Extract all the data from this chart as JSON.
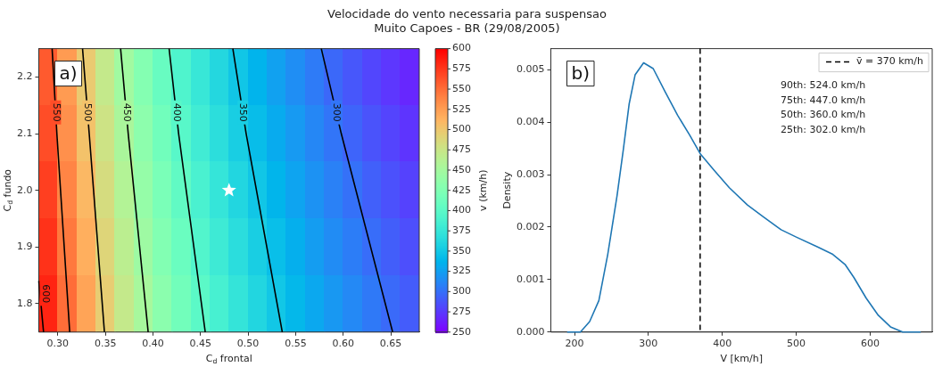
{
  "chart_data": [
    {
      "type": "heatmap",
      "title": "Velocidade do vento necessaria para suspensao",
      "subtitle": "Muito Capoes - BR (29/08/2005)",
      "xlabel": "C$_{d}$ frontal",
      "ylabel": "C$_{d}$ fundo",
      "clabel": "v (km/h)",
      "xlim": [
        0.28,
        0.68
      ],
      "xticks": [
        {
          "value": 0.3,
          "label": "0.30"
        },
        {
          "value": 0.35,
          "label": "0.35"
        },
        {
          "value": 0.4,
          "label": "0.40"
        },
        {
          "value": 0.45,
          "label": "0.45"
        },
        {
          "value": 0.5,
          "label": "0.50"
        },
        {
          "value": 0.55,
          "label": "0.55"
        },
        {
          "value": 0.6,
          "label": "0.60"
        },
        {
          "value": 0.65,
          "label": "0.65"
        }
      ],
      "ylim": [
        1.75,
        2.25
      ],
      "yticks": [
        1.8,
        1.9,
        {
          "value": 2,
          "label": "2.0"
        },
        2.1,
        2.2
      ],
      "cells": [
        [
          560,
          527,
          498,
          472,
          448,
          428,
          409,
          392,
          376,
          362,
          349,
          337,
          326,
          316,
          306,
          297,
          289,
          281,
          274,
          267
        ],
        [
          566,
          533,
          504,
          478,
          454,
          434,
          415,
          398,
          382,
          368,
          355,
          343,
          332,
          322,
          312,
          303,
          295,
          287,
          280,
          273
        ],
        [
          572,
          539,
          510,
          484,
          460,
          440,
          421,
          404,
          388,
          374,
          361,
          349,
          338,
          328,
          318,
          309,
          301,
          293,
          286,
          279
        ],
        [
          578,
          545,
          516,
          490,
          466,
          446,
          427,
          410,
          394,
          380,
          367,
          355,
          344,
          334,
          324,
          315,
          307,
          299,
          292,
          285
        ],
        [
          584,
          551,
          522,
          496,
          472,
          452,
          433,
          416,
          400,
          386,
          373,
          361,
          350,
          340,
          330,
          321,
          313,
          305,
          298,
          291
        ]
      ],
      "clim": [
        250,
        600
      ],
      "cticks": [
        250,
        275,
        300,
        325,
        350,
        375,
        400,
        425,
        450,
        475,
        500,
        525,
        550,
        575,
        600
      ],
      "series": [
        {
          "type": "line",
          "name": "600",
          "color": "#000000",
          "x": [
            0.285,
            0.28
          ],
          "values": [
            1.75,
            1.84
          ]
        },
        {
          "type": "line",
          "name": "550",
          "color": "#000000",
          "x": [
            0.294,
            0.299,
            0.3125
          ],
          "values": [
            2.25,
            2.1,
            1.75
          ]
        },
        {
          "type": "line",
          "name": "500",
          "color": "#000000",
          "x": [
            0.326,
            0.333,
            0.349
          ],
          "values": [
            2.25,
            2.1,
            1.75
          ]
        },
        {
          "type": "line",
          "name": "450",
          "color": "#000000",
          "x": [
            0.366,
            0.374,
            0.395
          ],
          "values": [
            2.25,
            2.1,
            1.75
          ]
        },
        {
          "type": "line",
          "name": "400",
          "color": "#000000",
          "x": [
            0.417,
            0.427,
            0.455
          ],
          "values": [
            2.25,
            2.1,
            1.75
          ]
        },
        {
          "type": "line",
          "name": "350",
          "color": "#000000",
          "x": [
            0.484,
            0.498,
            0.536
          ],
          "values": [
            2.25,
            2.1,
            1.75
          ]
        },
        {
          "type": "line",
          "name": "300",
          "color": "#000000",
          "x": [
            0.577,
            0.598,
            0.652
          ],
          "values": [
            2.25,
            2.1,
            1.75
          ]
        },
        {
          "type": "scatter",
          "marker": "star",
          "color": "#ffffff",
          "x": [
            0.48
          ],
          "values": [
            2.0
          ]
        }
      ],
      "annotations": [
        "a)"
      ]
    },
    {
      "type": "line",
      "xlabel": "V [km/h]",
      "ylabel": "Density",
      "xlim": [
        168,
        684
      ],
      "xticks": [
        200,
        300,
        400,
        500,
        600
      ],
      "ylim": [
        0,
        0.0054
      ],
      "yticks": [
        {
          "value": 0,
          "label": "0.000"
        },
        {
          "value": 0.001,
          "label": "0.001"
        },
        {
          "value": 0.002,
          "label": "0.002"
        },
        {
          "value": 0.003,
          "label": "0.003"
        },
        {
          "value": 0.004,
          "label": "0.004"
        },
        {
          "value": 0.005,
          "label": "0.005"
        }
      ],
      "x": [
        190,
        208,
        220.5,
        233,
        245,
        257.5,
        266,
        274,
        282,
        293.5,
        306.5,
        323,
        339.5,
        356,
        370.5,
        389,
        409.5,
        434,
        455,
        479.5,
        500,
        529,
        549.5,
        566,
        578,
        594.5,
        611,
        627.5,
        644,
        668.5
      ],
      "series": [
        {
          "color": "#1f77b4",
          "values": [
            0,
            0,
            0.0002,
            0.0006,
            0.00148,
            0.00259,
            0.00347,
            0.00435,
            0.0049,
            0.00513,
            0.00502,
            0.00457,
            0.00413,
            0.00375,
            0.00339,
            0.00308,
            0.00275,
            0.00242,
            0.0022,
            0.00195,
            0.00181,
            0.00162,
            0.00148,
            0.00129,
            0.00104,
            0.00065,
            0.00032,
            0.0001,
            0,
            0
          ]
        }
      ],
      "ref_lines": [
        {
          "axis": "x",
          "value": 370,
          "label": "v̄ = 370 km/h",
          "color": "#000000",
          "line_style": "dashed"
        }
      ],
      "legend": "top right",
      "annotations": [
        "b)",
        "90th: 524.0 km/h",
        "75th: 447.0 km/h",
        "50th: 360.0 km/h",
        "25th: 302.0 km/h"
      ]
    }
  ]
}
